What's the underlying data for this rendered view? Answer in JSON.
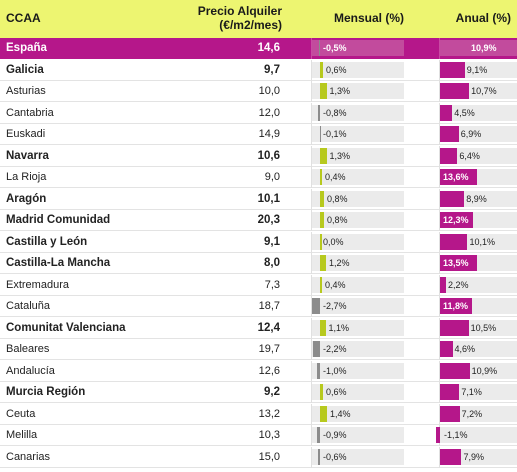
{
  "header": {
    "ccaa": "CCAA",
    "price_line1": "Precio Alquiler",
    "price_line2": "(€/m2/mes)",
    "mensual": "Mensual (%)",
    "anual": "Anual (%)"
  },
  "colors": {
    "header_bg": "#edf571",
    "highlight_row": "#b5178a",
    "mensual_positive": "#b7c91e",
    "mensual_negative": "#8c8c8c",
    "anual_bar": "#b5178a",
    "track": "#ebebeb"
  },
  "chart_data": {
    "type": "table",
    "columns": [
      "CCAA",
      "Precio Alquiler (€/m2/mes)",
      "Mensual (%)",
      "Anual (%)"
    ],
    "mensual_range": [
      -2.7,
      1.4
    ],
    "anual_range": [
      -1.1,
      13.6
    ],
    "rows": [
      {
        "ccaa": "España",
        "price": "14,6",
        "mensual": -0.5,
        "mensual_label": "-0,5%",
        "anual": 10.9,
        "anual_label": "10,9%",
        "highlight": true,
        "bold": true
      },
      {
        "ccaa": "Galicia",
        "price": "9,7",
        "mensual": 0.6,
        "mensual_label": "0,6%",
        "anual": 9.1,
        "anual_label": "9,1%",
        "bold": true
      },
      {
        "ccaa": "Asturias",
        "price": "10,0",
        "mensual": 1.3,
        "mensual_label": "1,3%",
        "anual": 10.7,
        "anual_label": "10,7%"
      },
      {
        "ccaa": "Cantabria",
        "price": "12,0",
        "mensual": -0.8,
        "mensual_label": "-0,8%",
        "anual": 4.5,
        "anual_label": "4,5%"
      },
      {
        "ccaa": "Euskadi",
        "price": "14,9",
        "mensual": -0.1,
        "mensual_label": "-0,1%",
        "anual": 6.9,
        "anual_label": "6,9%"
      },
      {
        "ccaa": "Navarra",
        "price": "10,6",
        "mensual": 1.3,
        "mensual_label": "1,3%",
        "anual": 6.4,
        "anual_label": "6,4%",
        "bold": true
      },
      {
        "ccaa": "La Rioja",
        "price": "9,0",
        "mensual": 0.4,
        "mensual_label": "0,4%",
        "anual": 13.6,
        "anual_label": "13,6%"
      },
      {
        "ccaa": "Aragón",
        "price": "10,1",
        "mensual": 0.8,
        "mensual_label": "0,8%",
        "anual": 8.9,
        "anual_label": "8,9%",
        "bold": true
      },
      {
        "ccaa": "Madrid Comunidad",
        "price": "20,3",
        "mensual": 0.8,
        "mensual_label": "0,8%",
        "anual": 12.3,
        "anual_label": "12,3%",
        "bold": true
      },
      {
        "ccaa": "Castilla y León",
        "price": "9,1",
        "mensual": 0.0,
        "mensual_label": "0,0%",
        "anual": 10.1,
        "anual_label": "10,1%",
        "bold": true
      },
      {
        "ccaa": "Castilla-La Mancha",
        "price": "8,0",
        "mensual": 1.2,
        "mensual_label": "1,2%",
        "anual": 13.5,
        "anual_label": "13,5%",
        "bold": true
      },
      {
        "ccaa": "Extremadura",
        "price": "7,3",
        "mensual": 0.4,
        "mensual_label": "0,4%",
        "anual": 2.2,
        "anual_label": "2,2%"
      },
      {
        "ccaa": "Cataluña",
        "price": "18,7",
        "mensual": -2.7,
        "mensual_label": "-2,7%",
        "anual": 11.8,
        "anual_label": "11,8%"
      },
      {
        "ccaa": "Comunitat Valenciana",
        "price": "12,4",
        "mensual": 1.1,
        "mensual_label": "1,1%",
        "anual": 10.5,
        "anual_label": "10,5%",
        "bold": true
      },
      {
        "ccaa": "Baleares",
        "price": "19,7",
        "mensual": -2.2,
        "mensual_label": "-2,2%",
        "anual": 4.6,
        "anual_label": "4,6%"
      },
      {
        "ccaa": "Andalucía",
        "price": "12,6",
        "mensual": -1.0,
        "mensual_label": "-1,0%",
        "anual": 10.9,
        "anual_label": "10,9%"
      },
      {
        "ccaa": "Murcia Región",
        "price": "9,2",
        "mensual": 0.6,
        "mensual_label": "0,6%",
        "anual": 7.1,
        "anual_label": "7,1%",
        "bold": true
      },
      {
        "ccaa": "Ceuta",
        "price": "13,2",
        "mensual": 1.4,
        "mensual_label": "1,4%",
        "anual": 7.2,
        "anual_label": "7,2%"
      },
      {
        "ccaa": "Melilla",
        "price": "10,3",
        "mensual": -0.9,
        "mensual_label": "-0,9%",
        "anual": -1.1,
        "anual_label": "-1,1%"
      },
      {
        "ccaa": "Canarias",
        "price": "15,0",
        "mensual": -0.6,
        "mensual_label": "-0,6%",
        "anual": 7.9,
        "anual_label": "7,9%"
      }
    ]
  }
}
